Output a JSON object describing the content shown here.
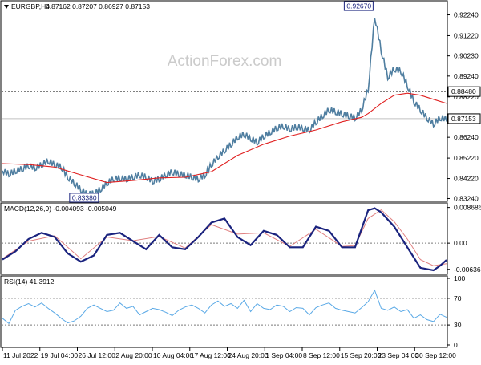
{
  "colors": {
    "price": "#4f7ea0",
    "ma": "#e02020",
    "macd_main": "#1a237e",
    "macd_signal": "#e08080",
    "rsi": "#5aa9e6",
    "border": "#000000",
    "grid_dotted": "#7a7a7a",
    "watermark": "#c8c8c8",
    "label_box": "#1a237e",
    "current_line": "#c0c0c0"
  },
  "header": {
    "symbol_label": "EURGBP,H4",
    "ohlc": "0.87162 0.87207 0.86927 0.87153",
    "marker_icon": "triangle-down-icon"
  },
  "watermark": "ActionForex.com",
  "chart_data": [
    {
      "type": "line",
      "panel": "price",
      "title": "EURGBP,H4",
      "y_ticks": [
        "0.92240",
        "0.91220",
        "0.90230",
        "0.89240",
        "0.88220",
        "0.86240",
        "0.85220",
        "0.84220",
        "0.83240"
      ],
      "ylim": [
        0.8318,
        0.9285
      ],
      "horizontal_line": {
        "value": 0.8848,
        "label": "0.88480",
        "style": "dotted"
      },
      "current_price": {
        "value": 0.87153,
        "label": "0.87153"
      },
      "annotations": [
        {
          "text": "0.92670",
          "value": 0.9267
        },
        {
          "text": "0.83380",
          "value": 0.8338
        }
      ],
      "series": [
        {
          "role": "price",
          "x": [
            0,
            1,
            2,
            3,
            4,
            5,
            6,
            7,
            8,
            9,
            10,
            11,
            12,
            13,
            14,
            15,
            16,
            17,
            18,
            19,
            20,
            21,
            22,
            23,
            24,
            25,
            26,
            27,
            28,
            29,
            30,
            31,
            32,
            33,
            34,
            35,
            36,
            37,
            38,
            39,
            40,
            41,
            42,
            43,
            44,
            45,
            46,
            47,
            48,
            49,
            50,
            51,
            52,
            53,
            54,
            55,
            56,
            57,
            58,
            59,
            60,
            61,
            62,
            63,
            64,
            65,
            66,
            67,
            68
          ],
          "values": [
            0.846,
            0.8445,
            0.846,
            0.847,
            0.8485,
            0.8475,
            0.849,
            0.851,
            0.849,
            0.848,
            0.843,
            0.84,
            0.837,
            0.8345,
            0.835,
            0.837,
            0.84,
            0.842,
            0.8425,
            0.842,
            0.843,
            0.844,
            0.843,
            0.841,
            0.842,
            0.844,
            0.8455,
            0.8445,
            0.844,
            0.843,
            0.842,
            0.844,
            0.849,
            0.853,
            0.856,
            0.859,
            0.8625,
            0.864,
            0.862,
            0.86,
            0.863,
            0.865,
            0.867,
            0.868,
            0.8665,
            0.8675,
            0.867,
            0.866,
            0.87,
            0.873,
            0.876,
            0.875,
            0.874,
            0.873,
            0.872,
            0.876,
            0.886,
            0.922,
            0.905,
            0.892,
            0.896,
            0.895,
            0.888,
            0.88,
            0.876,
            0.872,
            0.869,
            0.872,
            0.8715
          ]
        },
        {
          "role": "moving-average",
          "x": [
            0,
            4,
            8,
            12,
            16,
            20,
            24,
            28,
            32,
            36,
            40,
            44,
            48,
            52,
            55,
            56,
            58,
            60,
            62,
            64,
            66,
            68
          ],
          "values": [
            0.8495,
            0.849,
            0.8478,
            0.844,
            0.8402,
            0.8412,
            0.8425,
            0.8428,
            0.8455,
            0.8535,
            0.859,
            0.863,
            0.866,
            0.87,
            0.8722,
            0.874,
            0.879,
            0.883,
            0.884,
            0.883,
            0.881,
            0.879
          ]
        }
      ]
    },
    {
      "type": "line",
      "panel": "macd",
      "title": "MACD(12,26,9) -0.004093 -0.005049",
      "y_ticks": [
        "0.008686",
        "0.00",
        "-0.006366"
      ],
      "ylim": [
        -0.007,
        0.0092
      ],
      "zero_line": 0,
      "series": [
        {
          "role": "main",
          "x": [
            0,
            2,
            4,
            6,
            8,
            10,
            12,
            14,
            16,
            18,
            20,
            22,
            24,
            26,
            28,
            30,
            32,
            34,
            36,
            38,
            40,
            42,
            44,
            46,
            48,
            50,
            52,
            54,
            56,
            57,
            58,
            60,
            62,
            64,
            66,
            67,
            68
          ],
          "values": [
            -0.004,
            -0.002,
            0.001,
            0.0025,
            0.0015,
            -0.0025,
            -0.0045,
            -0.003,
            0.002,
            0.0025,
            0.0005,
            -0.0015,
            0.002,
            -0.001,
            -0.0015,
            0.0015,
            0.005,
            0.006,
            0.0015,
            -0.0005,
            0.003,
            0.002,
            -0.001,
            -0.001,
            0.004,
            0.003,
            -0.001,
            -0.001,
            0.008,
            0.0085,
            0.0075,
            0.004,
            -0.001,
            -0.006,
            -0.0066,
            -0.0055,
            -0.0041
          ]
        },
        {
          "role": "signal",
          "x": [
            0,
            4,
            8,
            12,
            16,
            20,
            24,
            28,
            32,
            36,
            40,
            44,
            48,
            52,
            54,
            56,
            58,
            60,
            62,
            64,
            66,
            68
          ],
          "values": [
            -0.0038,
            0.0005,
            0.0018,
            -0.0038,
            0.0015,
            0.0006,
            0.0016,
            -0.0012,
            0.0045,
            0.0022,
            0.0025,
            -0.0008,
            0.0034,
            -0.0008,
            -0.0006,
            0.006,
            0.0081,
            0.0052,
            0.001,
            -0.004,
            -0.0055,
            -0.005
          ]
        }
      ]
    },
    {
      "type": "line",
      "panel": "rsi",
      "title": "RSI(14) 41.3912",
      "y_ticks": [
        "100",
        "70",
        "30",
        "0"
      ],
      "ylim": [
        0,
        100
      ],
      "levels": [
        70,
        30
      ],
      "series": [
        {
          "role": "rsi",
          "x": [
            0,
            1,
            2,
            3,
            4,
            5,
            6,
            7,
            8,
            9,
            10,
            11,
            12,
            13,
            14,
            15,
            16,
            17,
            18,
            19,
            20,
            21,
            22,
            23,
            24,
            25,
            26,
            27,
            28,
            29,
            30,
            31,
            32,
            33,
            34,
            35,
            36,
            37,
            38,
            39,
            40,
            41,
            42,
            43,
            44,
            45,
            46,
            47,
            48,
            49,
            50,
            51,
            52,
            53,
            54,
            55,
            56,
            57,
            58,
            59,
            60,
            61,
            62,
            63,
            64,
            65,
            66,
            67,
            68
          ],
          "values": [
            40,
            32,
            52,
            58,
            62,
            57,
            63,
            55,
            48,
            40,
            33,
            36,
            43,
            55,
            60,
            55,
            50,
            52,
            63,
            55,
            58,
            45,
            50,
            55,
            53,
            49,
            44,
            52,
            57,
            60,
            55,
            48,
            60,
            66,
            58,
            62,
            55,
            67,
            50,
            62,
            55,
            53,
            60,
            58,
            50,
            56,
            55,
            45,
            56,
            60,
            63,
            55,
            52,
            50,
            48,
            56,
            65,
            82,
            55,
            52,
            57,
            50,
            53,
            40,
            45,
            38,
            35,
            46,
            41.39
          ]
        }
      ]
    }
  ],
  "x_axis": {
    "labels": [
      "11 Jul 2022",
      "19 Jul 04:00",
      "26 Jul 12:00",
      "2 Aug 20:00",
      "10 Aug 04:00",
      "17 Aug 12:00",
      "24 Aug 20:00",
      "1 Sep 04:00",
      "8 Sep 12:00",
      "15 Sep 20:00",
      "23 Sep 04:00",
      "30 Sep 12:00"
    ]
  }
}
